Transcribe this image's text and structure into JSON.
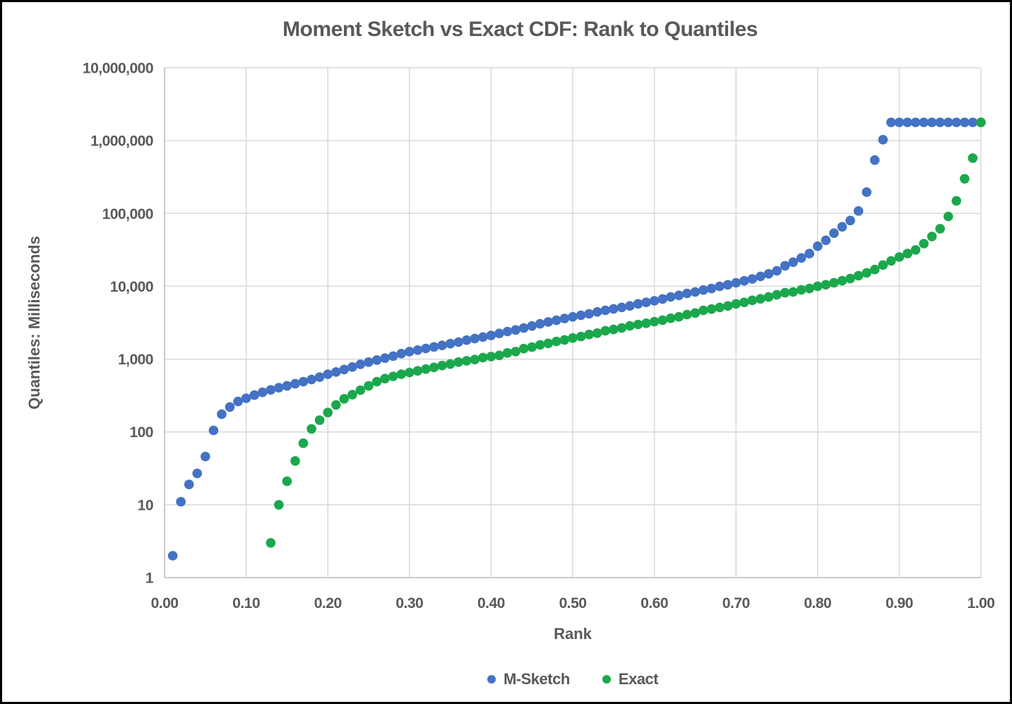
{
  "chart_data": {
    "type": "scatter",
    "title": "Moment Sketch vs Exact CDF: Rank to Quantiles",
    "xlabel": "Rank",
    "ylabel": "Quantiles: Milliseconds",
    "x_scale": "linear",
    "y_scale": "log",
    "xlim": [
      0,
      1
    ],
    "ylim": [
      1,
      10000000
    ],
    "grid": true,
    "legend_position": "bottom",
    "x_ticks": [
      "0.00",
      "0.10",
      "0.20",
      "0.30",
      "0.40",
      "0.50",
      "0.60",
      "0.70",
      "0.80",
      "0.90",
      "1.00"
    ],
    "y_ticks": [
      "1",
      "10",
      "100",
      "1,000",
      "10,000",
      "100,000",
      "1,000,000",
      "10,000,000"
    ],
    "colors": {
      "text": "#595959",
      "gridline": "#D9D9D9",
      "axis_line": "#BFBFBF",
      "background": "#FFFFFF",
      "frame": "#000000"
    },
    "series": [
      {
        "name": "M-Sketch",
        "color": "#4472C4",
        "x": [
          0.01,
          0.02,
          0.03,
          0.04,
          0.05,
          0.06,
          0.07,
          0.08,
          0.09,
          0.1,
          0.11,
          0.12,
          0.13,
          0.14,
          0.15,
          0.16,
          0.17,
          0.18,
          0.19,
          0.2,
          0.21,
          0.22,
          0.23,
          0.24,
          0.25,
          0.26,
          0.27,
          0.28,
          0.29,
          0.3,
          0.31,
          0.32,
          0.33,
          0.34,
          0.35,
          0.36,
          0.37,
          0.38,
          0.39,
          0.4,
          0.41,
          0.42,
          0.43,
          0.44,
          0.45,
          0.46,
          0.47,
          0.48,
          0.49,
          0.5,
          0.51,
          0.52,
          0.53,
          0.54,
          0.55,
          0.56,
          0.57,
          0.58,
          0.59,
          0.6,
          0.61,
          0.62,
          0.63,
          0.64,
          0.65,
          0.66,
          0.67,
          0.68,
          0.69,
          0.7,
          0.71,
          0.72,
          0.73,
          0.74,
          0.75,
          0.76,
          0.77,
          0.78,
          0.79,
          0.8,
          0.81,
          0.82,
          0.83,
          0.84,
          0.85,
          0.86,
          0.87,
          0.88,
          0.89,
          0.9,
          0.91,
          0.92,
          0.93,
          0.94,
          0.95,
          0.96,
          0.97,
          0.98,
          0.99,
          1.0
        ],
        "y": [
          2,
          11,
          19,
          27,
          46,
          105,
          175,
          220,
          262,
          290,
          320,
          350,
          378,
          405,
          430,
          460,
          490,
          525,
          565,
          620,
          665,
          720,
          780,
          850,
          910,
          970,
          1030,
          1100,
          1190,
          1270,
          1330,
          1400,
          1470,
          1540,
          1630,
          1710,
          1820,
          1920,
          2010,
          2110,
          2250,
          2390,
          2510,
          2670,
          2850,
          3050,
          3240,
          3410,
          3610,
          3810,
          4000,
          4180,
          4450,
          4670,
          4900,
          5130,
          5380,
          5740,
          6020,
          6320,
          6700,
          7140,
          7500,
          7990,
          8360,
          8890,
          9310,
          9990,
          10480,
          11170,
          11890,
          12620,
          13680,
          14820,
          16300,
          19100,
          21400,
          24500,
          28100,
          35500,
          42800,
          53600,
          65500,
          80000,
          108000,
          196000,
          540000,
          1030000,
          1780000,
          1780000,
          1780000,
          1780000,
          1780000,
          1780000,
          1780000,
          1780000,
          1780000,
          1780000,
          1780000,
          1780000
        ]
      },
      {
        "name": "Exact",
        "color": "#1BA84C",
        "x": [
          0.13,
          0.14,
          0.15,
          0.16,
          0.17,
          0.18,
          0.19,
          0.2,
          0.21,
          0.22,
          0.23,
          0.24,
          0.25,
          0.26,
          0.27,
          0.28,
          0.29,
          0.3,
          0.31,
          0.32,
          0.33,
          0.34,
          0.35,
          0.36,
          0.37,
          0.38,
          0.39,
          0.4,
          0.41,
          0.42,
          0.43,
          0.44,
          0.45,
          0.46,
          0.47,
          0.48,
          0.49,
          0.5,
          0.51,
          0.52,
          0.53,
          0.54,
          0.55,
          0.56,
          0.57,
          0.58,
          0.59,
          0.6,
          0.61,
          0.62,
          0.63,
          0.64,
          0.65,
          0.66,
          0.67,
          0.68,
          0.69,
          0.7,
          0.71,
          0.72,
          0.73,
          0.74,
          0.75,
          0.76,
          0.77,
          0.78,
          0.79,
          0.8,
          0.81,
          0.82,
          0.83,
          0.84,
          0.85,
          0.86,
          0.87,
          0.88,
          0.89,
          0.9,
          0.91,
          0.92,
          0.93,
          0.94,
          0.95,
          0.96,
          0.97,
          0.98,
          0.99,
          1.0
        ],
        "y": [
          3,
          10,
          21,
          40,
          70,
          110,
          145,
          185,
          235,
          285,
          325,
          375,
          430,
          490,
          540,
          580,
          620,
          655,
          690,
          730,
          770,
          815,
          855,
          910,
          950,
          985,
          1050,
          1085,
          1125,
          1215,
          1270,
          1395,
          1460,
          1570,
          1645,
          1750,
          1835,
          1950,
          2040,
          2180,
          2270,
          2450,
          2550,
          2675,
          2865,
          2990,
          3105,
          3270,
          3430,
          3640,
          3810,
          4090,
          4290,
          4670,
          4870,
          5120,
          5370,
          5740,
          6020,
          6410,
          6730,
          7130,
          7650,
          8150,
          8350,
          8940,
          9320,
          10000,
          10500,
          11200,
          11900,
          12800,
          14000,
          15300,
          17000,
          19600,
          22300,
          25200,
          28100,
          31600,
          38500,
          48300,
          61700,
          91000,
          149000,
          299000,
          575000,
          1780000
        ]
      }
    ]
  }
}
